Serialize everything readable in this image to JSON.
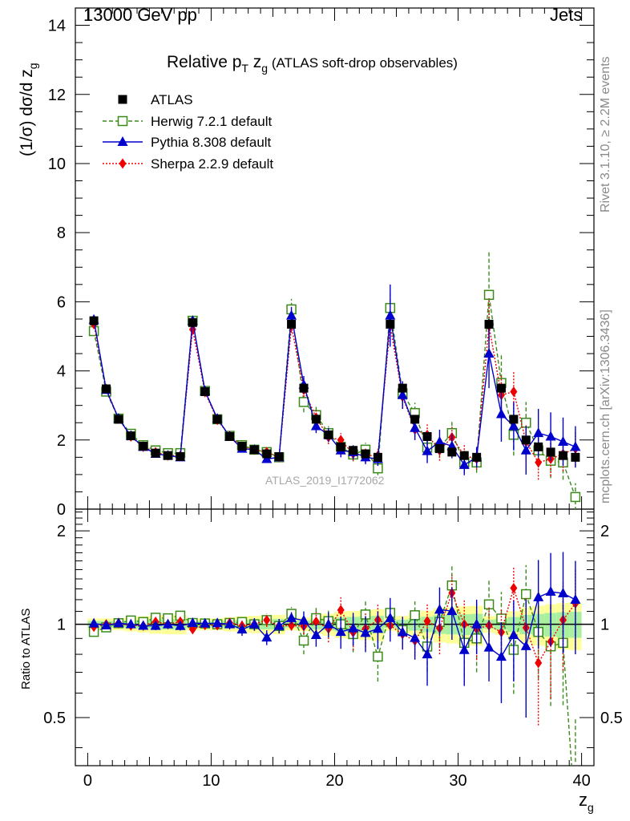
{
  "header": {
    "left": "13000 GeV pp",
    "right": "Jets"
  },
  "side_labels": {
    "top": "Rivet 3.1.10, ≥ 2.2M events",
    "bottom": "mcplots.cern.ch [arXiv:1306.3436]"
  },
  "chart_data": {
    "type": "scatter",
    "title_parts": {
      "main": "Relative p",
      "sub1": "T",
      "mid": " z",
      "sub2": "g",
      "tail": " (ATLAS soft-drop observables)"
    },
    "watermark": "ATLAS_2019_I1772062",
    "ylabel_parts": {
      "main": "(1/σ) dσ/d z",
      "sub": "g"
    },
    "xlabel_parts": {
      "main": "z",
      "sub": "g"
    },
    "ratio_ylabel": "Ratio to ATLAS",
    "xlim": [
      -1,
      41
    ],
    "ylim": [
      0,
      14.5
    ],
    "ratio_ylim": [
      0.35,
      2.35
    ],
    "xticks": [
      "0",
      "10",
      "20",
      "30",
      "40"
    ],
    "yticks": [
      "0",
      "2",
      "4",
      "6",
      "8",
      "10",
      "12",
      "14"
    ],
    "ratio_yticks": [
      "0.5",
      "1",
      "2"
    ],
    "legend_position": "top-left",
    "x": [
      0.5,
      1.5,
      2.5,
      3.5,
      4.5,
      5.5,
      6.5,
      7.5,
      8.5,
      9.5,
      10.5,
      11.5,
      12.5,
      13.5,
      14.5,
      15.5,
      16.5,
      17.5,
      18.5,
      19.5,
      20.5,
      21.5,
      22.5,
      23.5,
      24.5,
      25.5,
      26.5,
      27.5,
      28.5,
      29.5,
      30.5,
      31.5,
      32.5,
      33.5,
      34.5,
      35.5,
      36.5,
      37.5,
      38.5,
      39.5
    ],
    "series": [
      {
        "name": "ATLAS",
        "color": "#000000",
        "marker": "square-filled",
        "values": [
          5.45,
          3.48,
          2.6,
          2.12,
          1.82,
          1.62,
          1.55,
          1.52,
          5.4,
          3.4,
          2.6,
          2.1,
          1.82,
          1.72,
          1.6,
          1.52,
          5.35,
          3.5,
          2.6,
          2.15,
          1.8,
          1.7,
          1.6,
          1.5,
          5.35,
          3.5,
          2.6,
          2.1,
          1.75,
          1.65,
          1.55,
          1.5,
          5.35,
          3.5,
          2.6,
          2.0,
          1.8,
          1.65,
          1.55,
          1.5
        ],
        "errors": [
          0.05,
          0.05,
          0.05,
          0.05,
          0.05,
          0.05,
          0.05,
          0.05,
          0.06,
          0.06,
          0.05,
          0.05,
          0.05,
          0.05,
          0.05,
          0.05,
          0.1,
          0.08,
          0.08,
          0.08,
          0.08,
          0.08,
          0.08,
          0.08,
          0.12,
          0.1,
          0.1,
          0.1,
          0.1,
          0.1,
          0.1,
          0.1,
          0.15,
          0.12,
          0.12,
          0.12,
          0.12,
          0.12,
          0.12,
          0.12
        ]
      },
      {
        "name": "Herwig 7.2.1 default",
        "color": "#3a8a1a",
        "marker": "square-open",
        "line": "dashed",
        "values": [
          5.15,
          3.4,
          2.62,
          2.18,
          1.85,
          1.7,
          1.62,
          1.62,
          5.45,
          3.42,
          2.6,
          2.12,
          1.85,
          1.72,
          1.65,
          1.5,
          5.78,
          3.1,
          2.72,
          2.2,
          1.8,
          1.58,
          1.72,
          1.18,
          5.82,
          3.35,
          2.78,
          1.78,
          1.78,
          2.2,
          1.35,
          1.35,
          6.2,
          3.65,
          2.15,
          2.5,
          1.7,
          1.4,
          1.35,
          0.35
        ],
        "errors": [
          0.05,
          0.05,
          0.05,
          0.05,
          0.05,
          0.05,
          0.05,
          0.05,
          0.08,
          0.08,
          0.08,
          0.08,
          0.08,
          0.08,
          0.08,
          0.08,
          0.3,
          0.3,
          0.25,
          0.2,
          0.2,
          0.2,
          0.2,
          0.2,
          0.4,
          0.35,
          0.3,
          0.3,
          0.3,
          0.35,
          0.3,
          0.3,
          1.3,
          0.8,
          0.6,
          0.6,
          0.5,
          0.5,
          0.5,
          0.4
        ]
      },
      {
        "name": "Pythia 8.308 default",
        "color": "#0000cc",
        "marker": "triangle-filled",
        "line": "solid",
        "values": [
          5.48,
          3.45,
          2.62,
          2.12,
          1.8,
          1.6,
          1.55,
          1.5,
          5.45,
          3.42,
          2.62,
          2.1,
          1.75,
          1.72,
          1.45,
          1.5,
          5.6,
          3.6,
          2.4,
          2.15,
          1.7,
          1.65,
          1.5,
          1.45,
          5.6,
          3.3,
          2.35,
          1.68,
          1.95,
          1.82,
          1.28,
          1.5,
          4.5,
          2.75,
          2.4,
          1.7,
          2.2,
          2.1,
          1.95,
          1.8
        ],
        "errors": [
          0.05,
          0.05,
          0.05,
          0.05,
          0.05,
          0.05,
          0.05,
          0.05,
          0.08,
          0.08,
          0.08,
          0.08,
          0.08,
          0.08,
          0.08,
          0.08,
          0.25,
          0.25,
          0.2,
          0.2,
          0.2,
          0.2,
          0.2,
          0.2,
          0.9,
          0.4,
          0.35,
          0.35,
          0.35,
          0.35,
          0.3,
          0.3,
          1.0,
          0.8,
          0.7,
          0.7,
          0.7,
          0.7,
          0.7,
          0.6
        ]
      },
      {
        "name": "Sherpa 2.2.9 default",
        "color": "#ee0000",
        "marker": "diamond-filled",
        "line": "dotted",
        "values": [
          5.35,
          3.48,
          2.62,
          2.1,
          1.8,
          1.65,
          1.55,
          1.55,
          5.2,
          3.38,
          2.58,
          2.12,
          1.8,
          1.72,
          1.65,
          1.5,
          5.3,
          3.45,
          2.65,
          2.08,
          2.0,
          1.6,
          1.55,
          1.55,
          5.3,
          3.25,
          2.3,
          2.15,
          1.7,
          2.08,
          1.55,
          1.45,
          5.3,
          3.3,
          3.4,
          1.95,
          1.35,
          1.45,
          1.6,
          1.75
        ],
        "errors": [
          0.05,
          0.05,
          0.05,
          0.05,
          0.05,
          0.05,
          0.05,
          0.05,
          0.08,
          0.08,
          0.08,
          0.08,
          0.08,
          0.08,
          0.08,
          0.08,
          0.2,
          0.2,
          0.2,
          0.2,
          0.2,
          0.2,
          0.2,
          0.2,
          0.4,
          0.35,
          0.3,
          0.3,
          0.3,
          0.3,
          0.3,
          0.3,
          0.8,
          0.6,
          0.6,
          0.5,
          0.5,
          0.5,
          0.5,
          0.5
        ]
      }
    ]
  }
}
